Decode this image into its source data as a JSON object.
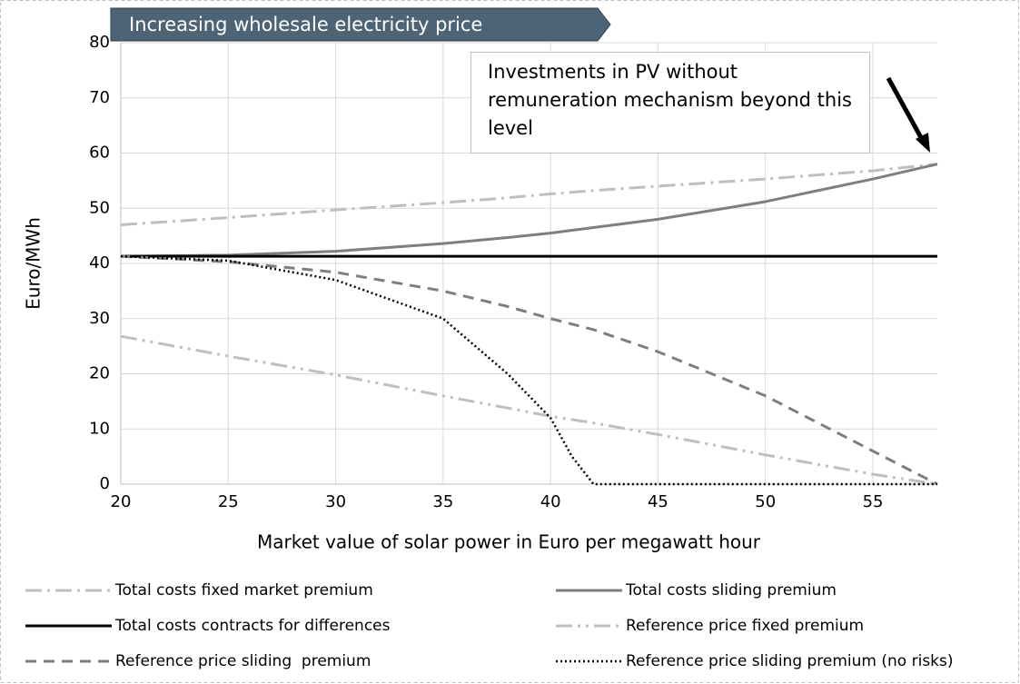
{
  "chart_data": {
    "type": "line",
    "banner": "Increasing wholesale electricity price",
    "annotation": "Investments in PV without remuneration mechanism beyond this level",
    "x_label": "Market value of solar power in Euro per megawatt hour",
    "y_label": "Euro/MWh",
    "x": [
      20,
      25,
      30,
      35,
      38,
      40,
      41,
      42,
      45,
      50,
      55,
      58
    ],
    "xlim": [
      20,
      58
    ],
    "xticks": [
      20,
      25,
      30,
      35,
      40,
      45,
      50,
      55
    ],
    "ylim": [
      0,
      80
    ],
    "yticks": [
      0,
      10,
      20,
      30,
      40,
      50,
      60,
      70,
      80
    ],
    "grid": true,
    "legend": "bottom",
    "series": [
      {
        "name": "Total costs fixed market premium",
        "color": "#bfbfbf",
        "dash": "dash-dot",
        "values": [
          47,
          48.3,
          49.7,
          51,
          51.9,
          52.6,
          52.9,
          53.2,
          54,
          55.3,
          56.8,
          58
        ]
      },
      {
        "name": "Total costs sliding premium",
        "color": "#7f7f7f",
        "dash": "solid",
        "values": [
          41.3,
          41.5,
          42.2,
          43.6,
          44.7,
          45.5,
          46,
          46.5,
          48,
          51.2,
          55.3,
          58
        ]
      },
      {
        "name": "Total costs contracts for differences",
        "color": "#000000",
        "dash": "solid",
        "values": [
          41.3,
          41.3,
          41.3,
          41.3,
          41.3,
          41.3,
          41.3,
          41.3,
          41.3,
          41.3,
          41.3,
          41.3
        ]
      },
      {
        "name": "Reference price fixed premium",
        "color": "#bfbfbf",
        "dash": "dash-dot-dot",
        "values": [
          26.8,
          23.2,
          19.8,
          16,
          13.8,
          12.3,
          11.7,
          11.1,
          9,
          5.3,
          1.8,
          0
        ]
      },
      {
        "name": "Reference price sliding  premium",
        "color": "#7f7f7f",
        "dash": "dashed",
        "values": [
          41.3,
          40.3,
          38.4,
          35,
          32.2,
          30,
          29,
          28,
          24,
          16,
          6,
          0
        ]
      },
      {
        "name": "Reference price sliding premium (no risks)",
        "color": "#000000",
        "dash": "dotted",
        "values": [
          41.3,
          40.5,
          37,
          30,
          20,
          12,
          5,
          0,
          0,
          0,
          0,
          0
        ]
      }
    ]
  }
}
